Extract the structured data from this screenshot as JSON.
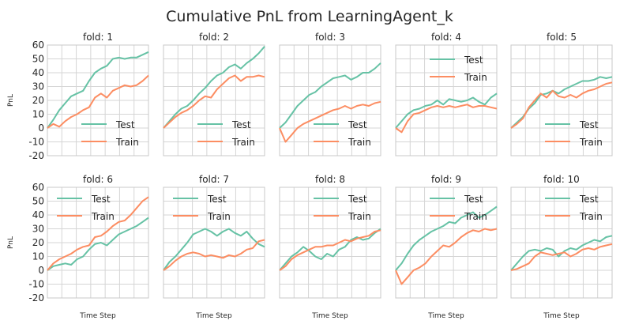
{
  "chart_data": {
    "type": "line",
    "title": "Cumulative PnL from LearningAgent_k",
    "xlabel": "Time Step",
    "ylabel": "PnL",
    "ylim": [
      -20,
      60
    ],
    "yticks": [
      -20,
      -10,
      0,
      10,
      20,
      30,
      40,
      50,
      60
    ],
    "grid": true,
    "colors": {
      "Test": "#66c2a5",
      "Train": "#fc8d62"
    },
    "panels": [
      {
        "title": "fold: 1",
        "legend": "lower-right",
        "series": [
          {
            "name": "Test",
            "values": [
              0,
              6,
              13,
              18,
              23,
              25,
              27,
              34,
              40,
              43,
              45,
              50,
              51,
              50,
              51,
              51,
              53,
              55
            ]
          },
          {
            "name": "Train",
            "values": [
              0,
              3,
              1,
              5,
              8,
              10,
              13,
              15,
              22,
              25,
              22,
              27,
              29,
              31,
              30,
              31,
              34,
              38
            ]
          }
        ]
      },
      {
        "title": "fold: 2",
        "legend": "lower-right",
        "series": [
          {
            "name": "Test",
            "values": [
              0,
              5,
              10,
              14,
              16,
              20,
              25,
              29,
              34,
              38,
              40,
              44,
              46,
              43,
              47,
              50,
              54,
              59
            ]
          },
          {
            "name": "Train",
            "values": [
              0,
              4,
              8,
              11,
              13,
              16,
              20,
              23,
              22,
              28,
              32,
              36,
              38,
              34,
              37,
              37,
              38,
              37
            ]
          }
        ]
      },
      {
        "title": "fold: 3",
        "legend": "lower-right",
        "series": [
          {
            "name": "Test",
            "values": [
              0,
              4,
              10,
              16,
              20,
              24,
              26,
              30,
              33,
              36,
              37,
              38,
              35,
              37,
              40,
              40,
              43,
              47
            ]
          },
          {
            "name": "Train",
            "values": [
              0,
              -10,
              -5,
              0,
              3,
              5,
              7,
              9,
              11,
              13,
              14,
              16,
              14,
              16,
              17,
              16,
              18,
              19
            ]
          }
        ]
      },
      {
        "title": "fold: 4",
        "legend": "upper-center",
        "series": [
          {
            "name": "Test",
            "values": [
              0,
              5,
              10,
              13,
              14,
              16,
              17,
              20,
              17,
              21,
              20,
              19,
              20,
              22,
              19,
              17,
              22,
              25
            ]
          },
          {
            "name": "Train",
            "values": [
              0,
              -3,
              5,
              10,
              11,
              13,
              15,
              16,
              15,
              16,
              15,
              16,
              17,
              15,
              16,
              16,
              15,
              14
            ]
          }
        ]
      },
      {
        "title": "fold: 5",
        "legend": "lower-right",
        "series": [
          {
            "name": "Test",
            "values": [
              0,
              4,
              8,
              14,
              18,
              24,
              25,
              27,
              25,
              28,
              30,
              32,
              34,
              34,
              35,
              37,
              36,
              37
            ]
          },
          {
            "name": "Train",
            "values": [
              0,
              3,
              7,
              15,
              20,
              25,
              22,
              27,
              23,
              22,
              24,
              22,
              25,
              27,
              28,
              30,
              32,
              33
            ]
          }
        ]
      },
      {
        "title": "fold: 6",
        "legend": "upper-left",
        "series": [
          {
            "name": "Test",
            "values": [
              0,
              3,
              4,
              5,
              4,
              8,
              10,
              15,
              19,
              20,
              18,
              22,
              26,
              28,
              30,
              32,
              35,
              38
            ]
          },
          {
            "name": "Train",
            "values": [
              0,
              5,
              8,
              10,
              12,
              15,
              17,
              18,
              24,
              25,
              28,
              32,
              35,
              36,
              40,
              45,
              50,
              53
            ]
          }
        ]
      },
      {
        "title": "fold: 7",
        "legend": "upper-left",
        "series": [
          {
            "name": "Test",
            "values": [
              0,
              6,
              10,
              15,
              20,
              26,
              28,
              30,
              28,
              25,
              28,
              30,
              27,
              25,
              28,
              23,
              19,
              17
            ]
          },
          {
            "name": "Train",
            "values": [
              0,
              3,
              7,
              10,
              12,
              13,
              12,
              10,
              11,
              10,
              9,
              11,
              10,
              12,
              15,
              16,
              21,
              22
            ]
          }
        ]
      },
      {
        "title": "fold: 8",
        "legend": "upper-right",
        "series": [
          {
            "name": "Test",
            "values": [
              0,
              5,
              10,
              13,
              17,
              14,
              10,
              8,
              12,
              10,
              15,
              17,
              22,
              24,
              22,
              23,
              27,
              30
            ]
          },
          {
            "name": "Train",
            "values": [
              0,
              3,
              8,
              11,
              13,
              15,
              17,
              17,
              18,
              18,
              20,
              22,
              21,
              23,
              24,
              25,
              28,
              29
            ]
          }
        ]
      },
      {
        "title": "fold: 9",
        "legend": "upper-right",
        "series": [
          {
            "name": "Test",
            "values": [
              0,
              5,
              12,
              18,
              22,
              25,
              28,
              30,
              32,
              35,
              34,
              38,
              40,
              42,
              38,
              40,
              43,
              46
            ]
          },
          {
            "name": "Train",
            "values": [
              0,
              -10,
              -5,
              0,
              2,
              5,
              10,
              14,
              18,
              17,
              20,
              24,
              27,
              29,
              28,
              30,
              29,
              30
            ]
          }
        ]
      },
      {
        "title": "fold: 10",
        "legend": "upper-right",
        "series": [
          {
            "name": "Test",
            "values": [
              0,
              5,
              10,
              14,
              15,
              14,
              16,
              15,
              10,
              14,
              16,
              15,
              18,
              20,
              22,
              21,
              24,
              25
            ]
          },
          {
            "name": "Train",
            "values": [
              0,
              1,
              3,
              5,
              10,
              13,
              12,
              11,
              12,
              13,
              10,
              12,
              15,
              16,
              15,
              17,
              18,
              19
            ]
          }
        ]
      }
    ]
  }
}
